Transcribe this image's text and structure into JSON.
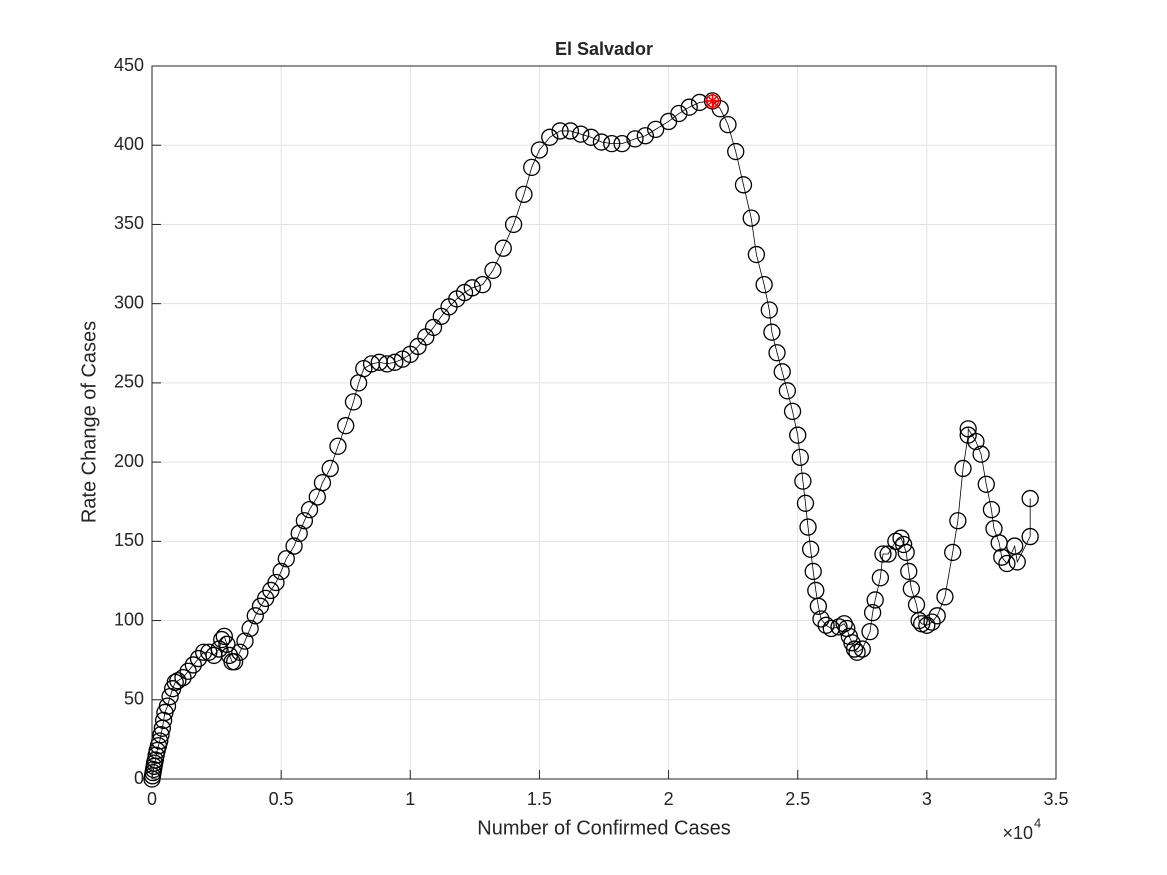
{
  "chart_data": {
    "type": "line-scatter",
    "title": "El Salvador",
    "xlabel": "Number of Confirmed Cases",
    "ylabel": "Rate Change of Cases",
    "x_multiplier": {
      "base": "×10",
      "exponent": "4"
    },
    "xlim": [
      0,
      3.5
    ],
    "xticks": [
      0,
      0.5,
      1,
      1.5,
      2,
      2.5,
      3,
      3.5
    ],
    "ylim": [
      0,
      450
    ],
    "yticks": [
      0,
      50,
      100,
      150,
      200,
      250,
      300,
      350,
      400,
      450
    ],
    "grid": true,
    "series": [
      {
        "color": "#000000",
        "x": [
          0,
          0.002,
          0.004,
          0.006,
          0.008,
          0.01,
          0.013,
          0.016,
          0.02,
          0.025,
          0.03,
          0.035,
          0.04,
          0.045,
          0.05,
          0.06,
          0.07,
          0.08,
          0.09,
          0.1,
          0.12,
          0.14,
          0.16,
          0.18,
          0.2,
          0.22,
          0.24,
          0.26,
          0.27,
          0.28,
          0.29,
          0.3,
          0.31,
          0.32,
          0.34,
          0.36,
          0.38,
          0.4,
          0.42,
          0.44,
          0.46,
          0.48,
          0.5,
          0.52,
          0.55,
          0.57,
          0.59,
          0.61,
          0.64,
          0.66,
          0.69,
          0.72,
          0.75,
          0.78,
          0.8,
          0.82,
          0.85,
          0.88,
          0.91,
          0.94,
          0.97,
          1,
          1.03,
          1.06,
          1.09,
          1.12,
          1.15,
          1.18,
          1.21,
          1.24,
          1.28,
          1.32,
          1.36,
          1.4,
          1.44,
          1.47,
          1.5,
          1.54,
          1.58,
          1.62,
          1.66,
          1.7,
          1.74,
          1.78,
          1.82,
          1.87,
          1.91,
          1.95,
          2,
          2.04,
          2.08,
          2.12,
          2.17,
          2.2,
          2.23,
          2.26,
          2.29,
          2.32,
          2.34,
          2.37,
          2.39,
          2.4,
          2.42,
          2.44,
          2.46,
          2.48,
          2.5,
          2.51,
          2.52,
          2.53,
          2.54,
          2.55,
          2.56,
          2.57,
          2.58,
          2.59,
          2.61,
          2.63,
          2.66,
          2.68,
          2.69,
          2.7,
          2.71,
          2.72,
          2.73,
          2.75,
          2.78,
          2.79,
          2.8,
          2.82,
          2.83,
          2.85,
          2.88,
          2.9,
          2.91,
          2.92,
          2.93,
          2.94,
          2.96,
          2.97,
          2.98,
          3,
          3.02,
          3.04,
          3.07,
          3.1,
          3.12,
          3.14,
          3.16,
          3.16,
          3.19,
          3.21,
          3.23,
          3.25,
          3.26,
          3.28,
          3.29,
          3.31,
          3.34,
          3.35,
          3.4,
          3.4
        ],
        "values": [
          0,
          2,
          4,
          6,
          8,
          10,
          12,
          15,
          18,
          21,
          24,
          28,
          32,
          37,
          42,
          46,
          52,
          57,
          61,
          62,
          64,
          68,
          72,
          76,
          80,
          80,
          78,
          82,
          88,
          90,
          85,
          78,
          74,
          74,
          80,
          87,
          95,
          103,
          109,
          114,
          119,
          124,
          131,
          139,
          147,
          155,
          163,
          170,
          178,
          187,
          196,
          210,
          223,
          238,
          250,
          259,
          262,
          263,
          262,
          263,
          265,
          268,
          273,
          279,
          285,
          292,
          298,
          303,
          307,
          310,
          312,
          321,
          335,
          350,
          369,
          386,
          397,
          405,
          409,
          409,
          407,
          405,
          402,
          401,
          401,
          404,
          406,
          410,
          415,
          420,
          424,
          427,
          428,
          423,
          413,
          396,
          375,
          354,
          331,
          312,
          296,
          282,
          269,
          257,
          245,
          232,
          217,
          203,
          188,
          174,
          159,
          145,
          131,
          119,
          109,
          101,
          97,
          95,
          96,
          98,
          95,
          90,
          86,
          82,
          80,
          82,
          93,
          105,
          113,
          127,
          142,
          142,
          150,
          152,
          148,
          143,
          131,
          120,
          110,
          100,
          98,
          97,
          99,
          103,
          115,
          143,
          163,
          196,
          217,
          221,
          213,
          205,
          186,
          170,
          158,
          149,
          140,
          136,
          147,
          137,
          153,
          177
        ]
      }
    ],
    "highlight": {
      "x": 2.17,
      "y": 428,
      "color": "#ff0000"
    }
  }
}
